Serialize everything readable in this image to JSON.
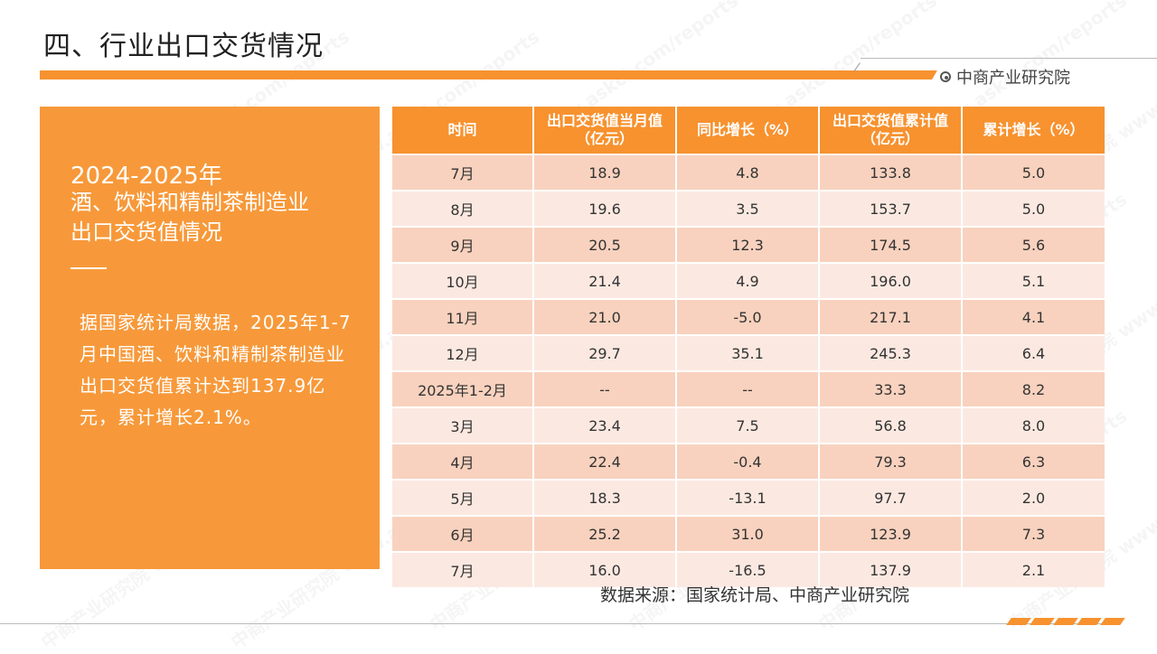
{
  "header": {
    "title": "四、行业出口交货情况",
    "brand": "中商产业研究院"
  },
  "left_panel": {
    "years": "2024-2025年",
    "heading_line1": "酒、饮料和精制茶制造业",
    "heading_line2": "出口交货值情况",
    "body": "据国家统计局数据，2025年1-7月中国酒、饮料和精制茶制造业出口交货值累计达到137.9亿元，累计增长2.1%。"
  },
  "table": {
    "headers": [
      "时间",
      "出口交货值当月值（亿元）",
      "同比增长（%）",
      "出口交货值累计值（亿元）",
      "累计增长（%）"
    ],
    "rows": [
      [
        "7月",
        "18.9",
        "4.8",
        "133.8",
        "5.0"
      ],
      [
        "8月",
        "19.6",
        "3.5",
        "153.7",
        "5.0"
      ],
      [
        "9月",
        "20.5",
        "12.3",
        "174.5",
        "5.6"
      ],
      [
        "10月",
        "21.4",
        "4.9",
        "196.0",
        "5.1"
      ],
      [
        "11月",
        "21.0",
        "-5.0",
        "217.1",
        "4.1"
      ],
      [
        "12月",
        "29.7",
        "35.1",
        "245.3",
        "6.4"
      ],
      [
        "2025年1-2月",
        "--",
        "--",
        "33.3",
        "8.2"
      ],
      [
        "3月",
        "23.4",
        "7.5",
        "56.8",
        "8.0"
      ],
      [
        "4月",
        "22.4",
        "-0.4",
        "79.3",
        "6.3"
      ],
      [
        "5月",
        "18.3",
        "-13.1",
        "97.7",
        "2.0"
      ],
      [
        "6月",
        "25.2",
        "31.0",
        "123.9",
        "7.3"
      ],
      [
        "7月",
        "16.0",
        "-16.5",
        "137.9",
        "2.1"
      ]
    ]
  },
  "footer": {
    "source": "数据来源：国家统计局、中商产业研究院"
  },
  "watermark": "中商产业研究院 www.askci.com/reports",
  "colors": {
    "accent": "#f7922f",
    "panel": "#f7993a",
    "row_dark": "#f8d2be",
    "row_light": "#fbe9e1"
  },
  "icons": [
    "target-icon"
  ]
}
